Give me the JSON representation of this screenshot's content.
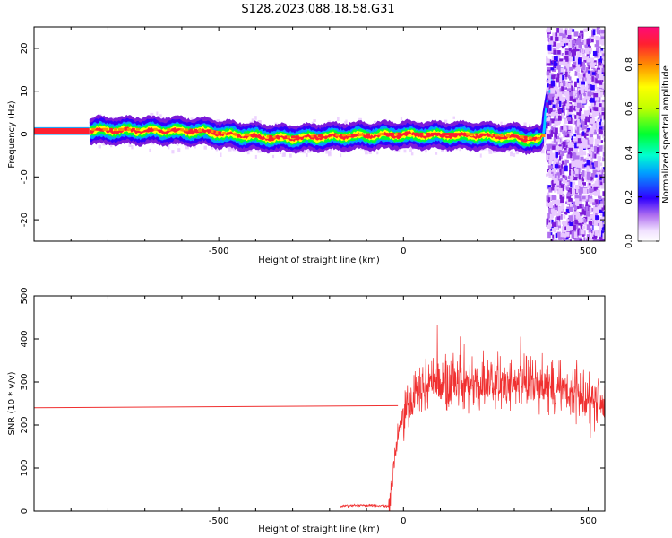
{
  "title": "S128.2023.088.18.58.G31",
  "chart_data": [
    {
      "type": "heatmap",
      "xlabel": "Height of straight line (km)",
      "ylabel": "Frequency (Hz)",
      "xlim": [
        -1000,
        545
      ],
      "ylim": [
        -25,
        25
      ],
      "xticks": [
        -500,
        0,
        500
      ],
      "yticks": [
        20,
        10,
        0,
        -10,
        -20
      ],
      "colorbar": {
        "label": "Normalized spectral amplitude",
        "range": [
          0,
          0.97
        ],
        "ticks": [
          0.0,
          0.2,
          0.4,
          0.6,
          0.8
        ],
        "colors": [
          "#ffffff",
          "#e8c8ff",
          "#7c1bd8",
          "#1e00ff",
          "#00d2ff",
          "#00ff40",
          "#ffff00",
          "#ff9800",
          "#ff0a6c"
        ]
      },
      "ridge": {
        "x": [
          -1000,
          -850,
          -700,
          -600,
          -530,
          -500,
          -420,
          -350,
          -300,
          -200,
          -100,
          0,
          100,
          200,
          300,
          350,
          370,
          380,
          385,
          395,
          400
        ],
        "y": [
          0.7,
          0.8,
          0.8,
          0.7,
          0.5,
          0.0,
          -0.5,
          -1.0,
          -1.0,
          -0.6,
          -0.4,
          -0.2,
          -0.3,
          -0.4,
          -0.8,
          -1.3,
          -1.5,
          0.5,
          5,
          10,
          14
        ]
      },
      "noise_region_start": 385
    },
    {
      "type": "line",
      "xlabel": "Height of straight line (km)",
      "ylabel": "SNR (10 * v/v)",
      "xlim": [
        -1000,
        545
      ],
      "ylim": [
        0,
        500
      ],
      "xticks": [
        -500,
        0,
        500
      ],
      "yticks": [
        500,
        400,
        300,
        200,
        100,
        0
      ],
      "series": [
        {
          "color": "#f03030",
          "x": [
            -1000,
            -15,
            -170,
            -120,
            -40,
            -30,
            -20,
            -10,
            0,
            10,
            30,
            50,
            100,
            150,
            200,
            250,
            300,
            350,
            400,
            450,
            500,
            545
          ],
          "y": [
            240,
            245,
            12,
            14,
            12,
            60,
            150,
            200,
            220,
            240,
            270,
            290,
            300,
            300,
            290,
            295,
            300,
            295,
            290,
            280,
            270,
            240
          ]
        }
      ]
    }
  ]
}
